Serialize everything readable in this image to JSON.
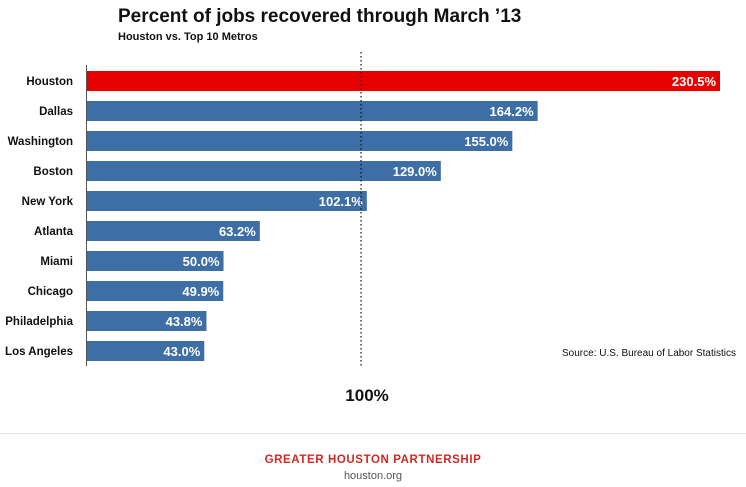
{
  "chart_data": {
    "type": "bar",
    "orientation": "horizontal",
    "title": "Percent of jobs recovered through March ’13",
    "subtitle": "Houston vs. Top 10 Metros",
    "categories": [
      "Houston",
      "Dallas",
      "Washington",
      "Boston",
      "New York",
      "Atlanta",
      "Miami",
      "Chicago",
      "Philadelphia",
      "Los Angeles"
    ],
    "values": [
      230.5,
      164.2,
      155.0,
      129.0,
      102.1,
      63.2,
      50.0,
      49.9,
      43.8,
      43.0
    ],
    "value_labels": [
      "230.5%",
      "164.2%",
      "155.0%",
      "129.0%",
      "102.1%",
      "63.2%",
      "50.0%",
      "49.9%",
      "43.8%",
      "43.0%"
    ],
    "reference_line": {
      "value": 100,
      "label": "100%",
      "style": "dotted"
    },
    "xlim": [
      0,
      230.5
    ],
    "grid": false,
    "legend": "none",
    "colors": {
      "highlight": "#e60000",
      "default": "#3d6ea6"
    },
    "highlight_category": "Houston",
    "source": "Source: U.S. Bureau of Labor Statistics"
  },
  "footer": {
    "organization": "GREATER HOUSTON PARTNERSHIP",
    "website": "houston.org"
  }
}
